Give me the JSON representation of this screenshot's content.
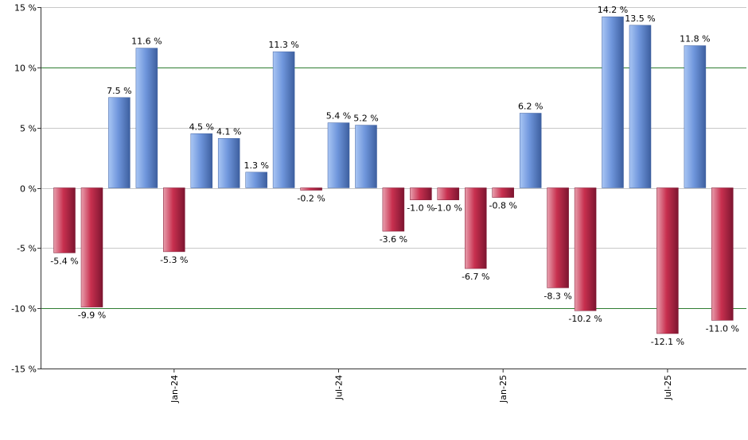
{
  "chart_data": {
    "type": "bar",
    "title": "",
    "xlabel": "",
    "ylabel": "",
    "ylim": [
      -15,
      15
    ],
    "y_ticks": [
      15,
      10,
      5,
      0,
      -5,
      -10,
      -15
    ],
    "y_tick_labels": [
      "15 %",
      "10 %",
      "5 %",
      "0 %",
      "-5 %",
      "-10 %",
      "-15 %"
    ],
    "highlight_gridlines": [
      10,
      -10
    ],
    "grid": true,
    "x_tick_labels": [
      {
        "label": "Jan-24",
        "bar_index": 4
      },
      {
        "label": "Jul-24",
        "bar_index": 10
      },
      {
        "label": "Jan-25",
        "bar_index": 16
      },
      {
        "label": "Jul-25",
        "bar_index": 22
      }
    ],
    "values": [
      -5.4,
      -9.9,
      7.5,
      11.6,
      -5.3,
      4.5,
      4.1,
      1.3,
      11.3,
      -0.2,
      5.4,
      5.2,
      -3.6,
      -1.0,
      -1.0,
      -6.7,
      -0.8,
      6.2,
      -8.3,
      -10.2,
      14.2,
      13.5,
      -12.1,
      11.8,
      -11.0
    ],
    "value_labels": [
      "-5.4 %",
      "-9.9 %",
      "7.5 %",
      "11.6 %",
      "-5.3 %",
      "4.5 %",
      "4.1 %",
      "1.3 %",
      "11.3 %",
      "-0.2 %",
      "5.4 %",
      "5.2 %",
      "-3.6 %",
      "-1.0 %",
      "-1.0 %",
      "-6.7 %",
      "-0.8 %",
      "6.2 %",
      "-8.3 %",
      "-10.2 %",
      "14.2 %",
      "13.5 %",
      "-12.1 %",
      "11.8 %",
      "-11.0 %"
    ],
    "colors": {
      "positive": "#6f96dc",
      "negative": "#c8304f",
      "grid": "#c8c8c8",
      "highlight_grid": "#2e7d32",
      "axis": "#333333"
    }
  }
}
